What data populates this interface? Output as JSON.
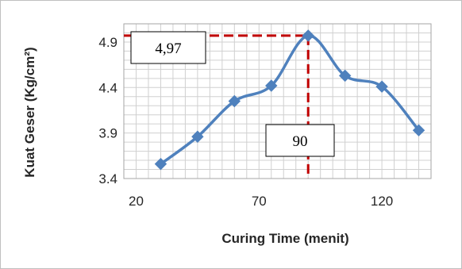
{
  "chart_data": {
    "type": "line",
    "xlabel": "Curing Time (menit)",
    "ylabel": "Kuat Geser (Kg/cm²)",
    "xlim": [
      15,
      140
    ],
    "ylim": [
      3.4,
      5.1
    ],
    "x_ticks": [
      20,
      70,
      120
    ],
    "x_tick_labels": [
      "20",
      "70",
      "120"
    ],
    "y_ticks": [
      3.4,
      3.9,
      4.4,
      4.9
    ],
    "y_tick_labels": [
      "3.4",
      "3.9",
      "4.4",
      "4.9"
    ],
    "grid": true,
    "x_minor_step": 5,
    "y_minor_step": 0.1,
    "series": [
      {
        "x": [
          30,
          45,
          60,
          75,
          90,
          105,
          120,
          135
        ],
        "y": [
          3.56,
          3.86,
          4.25,
          4.42,
          4.97,
          4.53,
          4.41,
          3.93
        ],
        "color": "#4F81BD",
        "marker": "diamond"
      }
    ],
    "annotations": [
      {
        "text": "4,97",
        "refline": "horizontal",
        "value": 4.97,
        "color": "#C00000"
      },
      {
        "text": "90",
        "refline": "vertical",
        "value": 90,
        "color": "#C00000"
      }
    ]
  }
}
